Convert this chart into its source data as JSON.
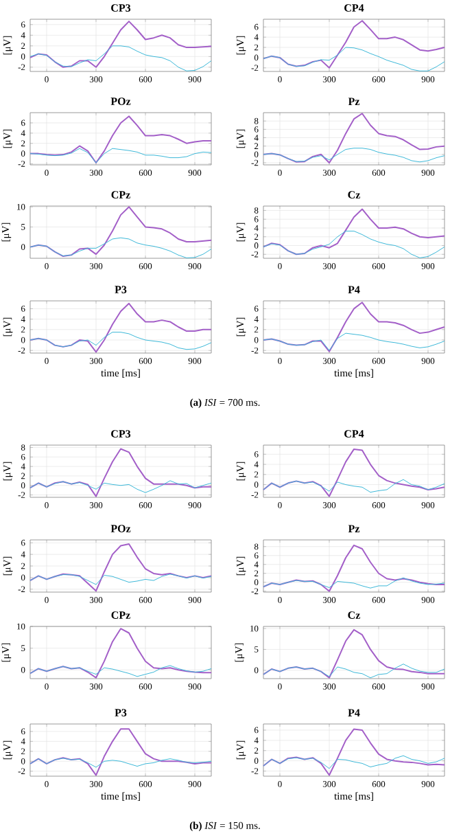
{
  "chart_data": [
    {
      "type": "line",
      "title": "CP3",
      "ylabel": "[μV]",
      "x": [
        -100,
        -50,
        0,
        50,
        100,
        150,
        200,
        250,
        300,
        350,
        400,
        450,
        500,
        550,
        600,
        650,
        700,
        750,
        800,
        850,
        900,
        950,
        1000
      ],
      "xlim": [
        -100,
        1000
      ],
      "xticks": [
        0,
        300,
        600,
        900
      ],
      "ylim": [
        -2.8,
        7
      ],
      "yticks": [
        -2,
        0,
        2,
        4,
        6
      ],
      "grid": true,
      "series": [
        {
          "color": "#3cb8d8",
          "values": [
            0,
            0.5,
            0.2,
            -1,
            -1.8,
            -1.9,
            -1.2,
            -0.6,
            -0.8,
            0.5,
            2,
            2,
            1.8,
            1,
            0.3,
            0,
            -0.2,
            -0.8,
            -2,
            -2.7,
            -2.6,
            -1.9,
            -0.8
          ]
        },
        {
          "color": "#a35fc8",
          "values": [
            -0.2,
            0.5,
            0.3,
            -1,
            -2,
            -1.8,
            -0.8,
            -0.8,
            -2,
            0,
            2.5,
            5,
            6.6,
            5,
            3.2,
            3.5,
            4,
            3.5,
            2.2,
            1.7,
            1.7,
            1.8,
            1.9
          ]
        }
      ]
    },
    {
      "type": "line",
      "title": "CP4",
      "ylabel": "[μV]",
      "x": [
        -100,
        -50,
        0,
        50,
        100,
        150,
        200,
        250,
        300,
        350,
        400,
        450,
        500,
        550,
        600,
        650,
        700,
        750,
        800,
        850,
        900,
        950,
        1000
      ],
      "xlim": [
        -100,
        1000
      ],
      "xticks": [
        0,
        300,
        600,
        900
      ],
      "ylim": [
        -2.7,
        7.5
      ],
      "yticks": [
        -2,
        0,
        2,
        4,
        6
      ],
      "grid": true,
      "series": [
        {
          "color": "#3cb8d8",
          "values": [
            -0.2,
            0.3,
            0,
            -1.3,
            -1.7,
            -1.6,
            -0.9,
            -0.4,
            -0.5,
            0.5,
            2,
            1.9,
            1.5,
            0.8,
            0.2,
            -0.5,
            -1,
            -1.5,
            -2.3,
            -2.6,
            -2.6,
            -1.8,
            -0.8
          ]
        },
        {
          "color": "#a35fc8",
          "values": [
            -0.2,
            0.3,
            0,
            -1.3,
            -1.7,
            -1.5,
            -0.8,
            -0.5,
            -2,
            0.5,
            3,
            6,
            7.2,
            5.5,
            3.7,
            3.7,
            4,
            3.5,
            2.5,
            1.5,
            1.3,
            1.6,
            2
          ]
        }
      ]
    },
    {
      "type": "line",
      "title": "POz",
      "ylabel": "[μV]",
      "x": [
        -100,
        -50,
        0,
        50,
        100,
        150,
        200,
        250,
        300,
        350,
        400,
        450,
        500,
        550,
        600,
        650,
        700,
        750,
        800,
        850,
        900,
        950,
        1000
      ],
      "xlim": [
        -100,
        1000
      ],
      "xticks": [
        0,
        300,
        600,
        900
      ],
      "ylim": [
        -2.2,
        8
      ],
      "yticks": [
        -2,
        0,
        2,
        4,
        6
      ],
      "grid": true,
      "series": [
        {
          "color": "#3cb8d8",
          "values": [
            0,
            -0.1,
            -0.3,
            -0.4,
            -0.3,
            0.1,
            1,
            0.2,
            -1.8,
            0,
            1,
            0.8,
            0.6,
            0.3,
            -0.3,
            -0.3,
            -0.5,
            -0.8,
            -0.8,
            -0.6,
            0,
            0.3,
            0.2
          ]
        },
        {
          "color": "#a35fc8",
          "values": [
            0,
            0,
            -0.2,
            -0.3,
            -0.2,
            0.3,
            1.5,
            0.5,
            -1.8,
            0.5,
            3.5,
            6,
            7.3,
            5.5,
            3.5,
            3.5,
            3.7,
            3.5,
            2.8,
            2,
            2.3,
            2.5,
            2.5
          ]
        }
      ]
    },
    {
      "type": "line",
      "title": "Pz",
      "ylabel": "[μV]",
      "x": [
        -100,
        -50,
        0,
        50,
        100,
        150,
        200,
        250,
        300,
        350,
        400,
        450,
        500,
        550,
        600,
        650,
        700,
        750,
        800,
        850,
        900,
        950,
        1000
      ],
      "xlim": [
        -100,
        1000
      ],
      "xticks": [
        0,
        300,
        600,
        900
      ],
      "ylim": [
        -2.5,
        10
      ],
      "yticks": [
        -2,
        0,
        2,
        4,
        6,
        8
      ],
      "grid": true,
      "series": [
        {
          "color": "#3cb8d8",
          "values": [
            0,
            0.2,
            -0.1,
            -1,
            -1.7,
            -1.6,
            -0.7,
            -0.3,
            -1.3,
            0,
            1.2,
            1.5,
            1.5,
            1.2,
            0.5,
            0.1,
            -0.2,
            -0.7,
            -1.5,
            -1.8,
            -1.5,
            -0.8,
            -0.3
          ]
        },
        {
          "color": "#a35fc8",
          "values": [
            0,
            0.2,
            -0.1,
            -1,
            -1.8,
            -1.7,
            -0.5,
            0,
            -2,
            1,
            5,
            8.5,
            9.8,
            7,
            5,
            4.5,
            4.3,
            3.5,
            2.3,
            1.2,
            1.3,
            1.8,
            2
          ]
        }
      ]
    },
    {
      "type": "line",
      "title": "CPz",
      "ylabel": "[μV]",
      "x": [
        -100,
        -50,
        0,
        50,
        100,
        150,
        200,
        250,
        300,
        350,
        400,
        450,
        500,
        550,
        600,
        650,
        700,
        750,
        800,
        850,
        900,
        950,
        1000
      ],
      "xlim": [
        -100,
        1000
      ],
      "xticks": [
        0,
        300,
        600,
        900
      ],
      "ylim": [
        -2.8,
        10.2
      ],
      "yticks": [
        0,
        5,
        10
      ],
      "grid": true,
      "series": [
        {
          "color": "#3cb8d8",
          "values": [
            0,
            0.5,
            0.2,
            -1.2,
            -2.2,
            -2,
            -1,
            -0.3,
            -0.3,
            0.8,
            2,
            2.3,
            2,
            1,
            0.5,
            0.2,
            -0.3,
            -1,
            -2,
            -2.7,
            -2.6,
            -1.8,
            -0.5
          ]
        },
        {
          "color": "#a35fc8",
          "values": [
            0,
            0.5,
            0.2,
            -1.2,
            -2.3,
            -2,
            -0.5,
            -0.3,
            -1.8,
            0.5,
            4,
            8,
            10,
            7.5,
            5,
            4.8,
            4.5,
            3.5,
            2,
            1.3,
            1.3,
            1.5,
            1.7
          ]
        }
      ]
    },
    {
      "type": "line",
      "title": "Cz",
      "ylabel": "[μV]",
      "x": [
        -100,
        -50,
        0,
        50,
        100,
        150,
        200,
        250,
        300,
        350,
        400,
        450,
        500,
        550,
        600,
        650,
        700,
        750,
        800,
        850,
        900,
        950,
        1000
      ],
      "xlim": [
        -100,
        1000
      ],
      "xticks": [
        0,
        300,
        600,
        900
      ],
      "ylim": [
        -2.9,
        9
      ],
      "yticks": [
        -2,
        0,
        2,
        4,
        6,
        8
      ],
      "grid": true,
      "series": [
        {
          "color": "#3cb8d8",
          "values": [
            -0.3,
            0.4,
            0.1,
            -1.2,
            -2,
            -1.8,
            -0.8,
            -0.3,
            0.3,
            2,
            3.3,
            3.3,
            2.5,
            1.5,
            0.8,
            0.3,
            0,
            -0.7,
            -2,
            -2.8,
            -2.5,
            -1.5,
            -0.3
          ]
        },
        {
          "color": "#a35fc8",
          "values": [
            -0.3,
            0.5,
            0.2,
            -1.2,
            -2,
            -1.8,
            -0.5,
            0,
            -0.5,
            0.5,
            3.5,
            6.5,
            8.3,
            6,
            4,
            4,
            4.2,
            3.8,
            2.8,
            2,
            1.8,
            2,
            2.2
          ]
        }
      ]
    },
    {
      "type": "line",
      "title": "P3",
      "ylabel": "[μV]",
      "xlabel": "time [ms]",
      "annotations": [
        "**(a)** *ISI* = 700 ms."
      ],
      "x": [
        -100,
        -50,
        0,
        50,
        100,
        150,
        200,
        250,
        300,
        350,
        400,
        450,
        500,
        550,
        600,
        650,
        700,
        750,
        800,
        850,
        900,
        950,
        1000
      ],
      "xlim": [
        -100,
        1000
      ],
      "xticks": [
        0,
        300,
        600,
        900
      ],
      "ylim": [
        -2.5,
        7.5
      ],
      "yticks": [
        -2,
        0,
        2,
        4,
        6
      ],
      "grid": true,
      "series": [
        {
          "color": "#3cb8d8",
          "values": [
            0,
            0.3,
            0,
            -1,
            -1.3,
            -1,
            -0.2,
            0,
            -1,
            0.5,
            1.5,
            1.5,
            1.2,
            0.5,
            0,
            -0.2,
            -0.4,
            -0.8,
            -1.5,
            -1.8,
            -1.7,
            -1.2,
            -0.5
          ]
        },
        {
          "color": "#a35fc8",
          "values": [
            0,
            0.3,
            0,
            -1,
            -1.3,
            -1,
            0,
            -0.2,
            -2.3,
            0,
            3,
            5.5,
            7,
            5,
            3.5,
            3.5,
            3.8,
            3.5,
            2.5,
            1.7,
            1.7,
            2,
            2
          ]
        }
      ]
    },
    {
      "type": "line",
      "title": "P4",
      "ylabel": "[μV]",
      "xlabel": "time [ms]",
      "x": [
        -100,
        -50,
        0,
        50,
        100,
        150,
        200,
        250,
        300,
        350,
        400,
        450,
        500,
        550,
        600,
        650,
        700,
        750,
        800,
        850,
        900,
        950,
        1000
      ],
      "xlim": [
        -100,
        1000
      ],
      "xticks": [
        0,
        300,
        600,
        900
      ],
      "ylim": [
        -2.5,
        7.5
      ],
      "yticks": [
        -2,
        0,
        2,
        4,
        6
      ],
      "grid": true,
      "series": [
        {
          "color": "#3cb8d8",
          "values": [
            0,
            0.2,
            -0.2,
            -0.8,
            -1,
            -0.9,
            -0.3,
            0,
            -2,
            0.3,
            1.3,
            1.1,
            0.9,
            0.5,
            0,
            -0.3,
            -0.5,
            -0.8,
            -1.2,
            -1.5,
            -1.3,
            -0.8,
            -0.2
          ]
        },
        {
          "color": "#a35fc8",
          "values": [
            0,
            0.2,
            -0.2,
            -0.8,
            -1,
            -0.9,
            -0.2,
            -0.2,
            -2.2,
            0.5,
            3.5,
            6,
            7.2,
            5,
            3.5,
            3.5,
            3.3,
            2.8,
            2,
            1.3,
            1.5,
            2,
            2.5
          ]
        }
      ]
    },
    {
      "type": "line",
      "title": "CP3",
      "ylabel": "[μV]",
      "x": [
        -100,
        -50,
        0,
        50,
        100,
        150,
        200,
        250,
        300,
        350,
        400,
        450,
        500,
        550,
        600,
        650,
        700,
        750,
        800,
        850,
        900,
        950,
        1000
      ],
      "xlim": [
        -100,
        1000
      ],
      "xticks": [
        0,
        300,
        600,
        900
      ],
      "ylim": [
        -2.5,
        8.5
      ],
      "yticks": [
        -2,
        0,
        2,
        4,
        6,
        8
      ],
      "grid": true,
      "series": [
        {
          "color": "#3cb8d8",
          "values": [
            -0.5,
            0.5,
            -0.3,
            0.4,
            0.8,
            0.3,
            0.6,
            0,
            -0.8,
            0.5,
            0.2,
            0,
            0.2,
            -0.8,
            -1.5,
            -0.8,
            0,
            1,
            0.3,
            0.4,
            -0.5,
            0,
            0.5
          ]
        },
        {
          "color": "#a35fc8",
          "values": [
            -0.5,
            0.5,
            -0.3,
            0.5,
            0.8,
            0.3,
            0.7,
            0.2,
            -2.3,
            1.5,
            5,
            7.7,
            7,
            4,
            1.5,
            0.3,
            0.3,
            0.3,
            0.3,
            0,
            -0.5,
            -0.3,
            -0.3
          ]
        }
      ]
    },
    {
      "type": "line",
      "title": "CP4",
      "ylabel": "[μV]",
      "x": [
        -100,
        -50,
        0,
        50,
        100,
        150,
        200,
        250,
        300,
        350,
        400,
        450,
        500,
        550,
        600,
        650,
        700,
        750,
        800,
        850,
        900,
        950,
        1000
      ],
      "xlim": [
        -100,
        1000
      ],
      "xticks": [
        0,
        300,
        600,
        900
      ],
      "ylim": [
        -2.5,
        7.8
      ],
      "yticks": [
        -2,
        0,
        2,
        4,
        6
      ],
      "grid": true,
      "series": [
        {
          "color": "#3cb8d8",
          "values": [
            -1,
            0.3,
            -0.5,
            0.3,
            0.7,
            0.3,
            0.5,
            -0.3,
            -1.3,
            0.5,
            0,
            -0.3,
            -0.5,
            -1.5,
            -1.2,
            -1,
            0.2,
            1,
            0,
            -0.3,
            -1,
            -0.5,
            0.2
          ]
        },
        {
          "color": "#a35fc8",
          "values": [
            -1,
            0.3,
            -0.5,
            0.3,
            0.7,
            0.3,
            0.6,
            -0.2,
            -2.3,
            1,
            4.5,
            7,
            6.8,
            4,
            1.8,
            0.8,
            0.3,
            0,
            -0.3,
            -0.5,
            -1,
            -0.8,
            -0.5
          ]
        }
      ]
    },
    {
      "type": "line",
      "title": "POz",
      "ylabel": "[μV]",
      "x": [
        -100,
        -50,
        0,
        50,
        100,
        150,
        200,
        250,
        300,
        350,
        400,
        450,
        500,
        550,
        600,
        650,
        700,
        750,
        800,
        850,
        900,
        950,
        1000
      ],
      "xlim": [
        -100,
        1000
      ],
      "xticks": [
        0,
        300,
        600,
        900
      ],
      "ylim": [
        -2.5,
        6.5
      ],
      "yticks": [
        -2,
        0,
        2,
        4,
        6
      ],
      "grid": true,
      "series": [
        {
          "color": "#3cb8d8",
          "values": [
            -0.5,
            0.3,
            -0.3,
            0.2,
            0.5,
            0.5,
            0.2,
            -0.5,
            -1.2,
            0.4,
            0.2,
            -0.3,
            -0.8,
            -0.6,
            -0.3,
            -0.5,
            0.2,
            0.6,
            0.3,
            -0.1,
            0.3,
            -0.1,
            0.2
          ]
        },
        {
          "color": "#a35fc8",
          "values": [
            -0.5,
            0.3,
            -0.3,
            0.2,
            0.6,
            0.5,
            0.3,
            -1,
            -2.3,
            1,
            4,
            5.5,
            5.8,
            3.5,
            1.5,
            0.7,
            0.5,
            0.7,
            0.3,
            0,
            0.3,
            0,
            0.3
          ]
        }
      ]
    },
    {
      "type": "line",
      "title": "Pz",
      "ylabel": "[μV]",
      "x": [
        -100,
        -50,
        0,
        50,
        100,
        150,
        200,
        250,
        300,
        350,
        400,
        450,
        500,
        550,
        600,
        650,
        700,
        750,
        800,
        850,
        900,
        950,
        1000
      ],
      "xlim": [
        -100,
        1000
      ],
      "xticks": [
        0,
        300,
        600,
        900
      ],
      "ylim": [
        -2.2,
        9.5
      ],
      "yticks": [
        -2,
        0,
        2,
        4,
        6,
        8
      ],
      "grid": true,
      "series": [
        {
          "color": "#3cb8d8",
          "values": [
            -1,
            -0.2,
            -0.5,
            0,
            0.4,
            0.2,
            0.2,
            -0.5,
            -1.2,
            0.2,
            0,
            -0.2,
            -0.8,
            -1.3,
            -0.8,
            -0.8,
            0.3,
            1,
            0.3,
            -0.2,
            -0.5,
            -0.4,
            -0.2
          ]
        },
        {
          "color": "#a35fc8",
          "values": [
            -1,
            -0.2,
            -0.5,
            0,
            0.5,
            0.2,
            0.3,
            -0.5,
            -2,
            1.5,
            5.5,
            8.3,
            7.5,
            4.5,
            2,
            0.8,
            0.5,
            0.8,
            0.5,
            0,
            -0.3,
            -0.5,
            -0.5
          ]
        }
      ]
    },
    {
      "type": "line",
      "title": "CPz",
      "ylabel": "[μV]",
      "x": [
        -100,
        -50,
        0,
        50,
        100,
        150,
        200,
        250,
        300,
        350,
        400,
        450,
        500,
        550,
        600,
        650,
        700,
        750,
        800,
        850,
        900,
        950,
        1000
      ],
      "xlim": [
        -100,
        1000
      ],
      "xticks": [
        0,
        300,
        600,
        900
      ],
      "ylim": [
        -2,
        10
      ],
      "yticks": [
        0,
        5,
        10
      ],
      "grid": true,
      "series": [
        {
          "color": "#3cb8d8",
          "values": [
            -0.8,
            0.3,
            -0.3,
            0.3,
            0.8,
            0.3,
            0.5,
            -0.3,
            -1,
            0.5,
            0.2,
            -0.3,
            -0.8,
            -1.5,
            -1,
            -0.5,
            0.5,
            1,
            0.3,
            -0.2,
            -0.5,
            -0.3,
            0.3
          ]
        },
        {
          "color": "#a35fc8",
          "values": [
            -0.8,
            0.3,
            -0.3,
            0.3,
            0.8,
            0.3,
            0.5,
            -0.5,
            -1.8,
            2,
            6.5,
            9.5,
            8.5,
            5,
            2,
            0.5,
            0.3,
            0.5,
            0,
            -0.3,
            -0.5,
            -0.6,
            -0.6
          ]
        }
      ]
    },
    {
      "type": "line",
      "title": "Cz",
      "ylabel": "[μV]",
      "x": [
        -100,
        -50,
        0,
        50,
        100,
        150,
        200,
        250,
        300,
        350,
        400,
        450,
        500,
        550,
        600,
        650,
        700,
        750,
        800,
        850,
        900,
        950,
        1000
      ],
      "xlim": [
        -100,
        1000
      ],
      "xticks": [
        0,
        300,
        600,
        900
      ],
      "ylim": [
        -2,
        10.5
      ],
      "yticks": [
        0,
        5,
        10
      ],
      "grid": true,
      "series": [
        {
          "color": "#3cb8d8",
          "values": [
            -1,
            0.3,
            -0.3,
            0.5,
            0.8,
            0.3,
            0.5,
            -0.3,
            -1.5,
            0.8,
            0.3,
            -0.5,
            -0.8,
            -1.8,
            -1,
            -0.8,
            0.5,
            1.5,
            0.5,
            -0.2,
            -0.5,
            -0.5,
            0.3
          ]
        },
        {
          "color": "#a35fc8",
          "values": [
            -1,
            0.3,
            -0.3,
            0.5,
            0.8,
            0.3,
            0.5,
            -0.3,
            -1.8,
            2.5,
            7,
            9.7,
            8.5,
            5,
            2.3,
            0.8,
            0.3,
            0.2,
            -0.3,
            -0.5,
            -0.8,
            -0.8,
            -0.8
          ]
        }
      ]
    },
    {
      "type": "line",
      "title": "P3",
      "ylabel": "[μV]",
      "xlabel": "time [ms]",
      "annotations": [
        "**(b)** *ISI* = 150 ms."
      ],
      "x": [
        -100,
        -50,
        0,
        50,
        100,
        150,
        200,
        250,
        300,
        350,
        400,
        450,
        500,
        550,
        600,
        650,
        700,
        750,
        800,
        850,
        900,
        950,
        1000
      ],
      "xlim": [
        -100,
        1000
      ],
      "xticks": [
        0,
        300,
        600,
        900
      ],
      "ylim": [
        -3,
        7.5
      ],
      "yticks": [
        -2,
        0,
        2,
        4,
        6
      ],
      "grid": true,
      "series": [
        {
          "color": "#3cb8d8",
          "values": [
            -0.5,
            0.5,
            -0.5,
            0.3,
            0.6,
            0.3,
            0.4,
            -0.3,
            -1.2,
            0,
            0.2,
            0,
            -0.5,
            -1,
            -0.5,
            -0.3,
            0.2,
            0.5,
            0.2,
            -0.2,
            -0.3,
            -0.2,
            0
          ]
        },
        {
          "color": "#a35fc8",
          "values": [
            -0.5,
            0.5,
            -0.5,
            0.3,
            0.7,
            0.3,
            0.5,
            -0.5,
            -2.8,
            1,
            4,
            6.5,
            6.5,
            4,
            1.5,
            0.5,
            0,
            0,
            0,
            -0.2,
            -0.5,
            -0.3,
            -0.3
          ]
        }
      ]
    },
    {
      "type": "line",
      "title": "P4",
      "ylabel": "[μV]",
      "xlabel": "time [ms]",
      "x": [
        -100,
        -50,
        0,
        50,
        100,
        150,
        200,
        250,
        300,
        350,
        400,
        450,
        500,
        550,
        600,
        650,
        700,
        750,
        800,
        850,
        900,
        950,
        1000
      ],
      "xlim": [
        -100,
        1000
      ],
      "xticks": [
        0,
        300,
        600,
        900
      ],
      "ylim": [
        -3,
        7.2
      ],
      "yticks": [
        -2,
        0,
        2,
        4,
        6
      ],
      "grid": true,
      "series": [
        {
          "color": "#3cb8d8",
          "values": [
            -1,
            0.3,
            -0.5,
            0.4,
            0.6,
            0.3,
            0.5,
            -0.3,
            -1.5,
            0.3,
            0.2,
            -0.2,
            -0.5,
            -1.2,
            -0.8,
            -0.5,
            0.5,
            1,
            0.3,
            0,
            -0.5,
            -0.2,
            0.5
          ]
        },
        {
          "color": "#a35fc8",
          "values": [
            -1,
            0.3,
            -0.5,
            0.5,
            0.7,
            0.3,
            0.6,
            -0.5,
            -2.8,
            0.5,
            4,
            6.2,
            6,
            3.5,
            1.3,
            0.3,
            0,
            -0.2,
            -0.3,
            -0.5,
            -0.8,
            -0.7,
            -0.8
          ]
        }
      ]
    }
  ]
}
